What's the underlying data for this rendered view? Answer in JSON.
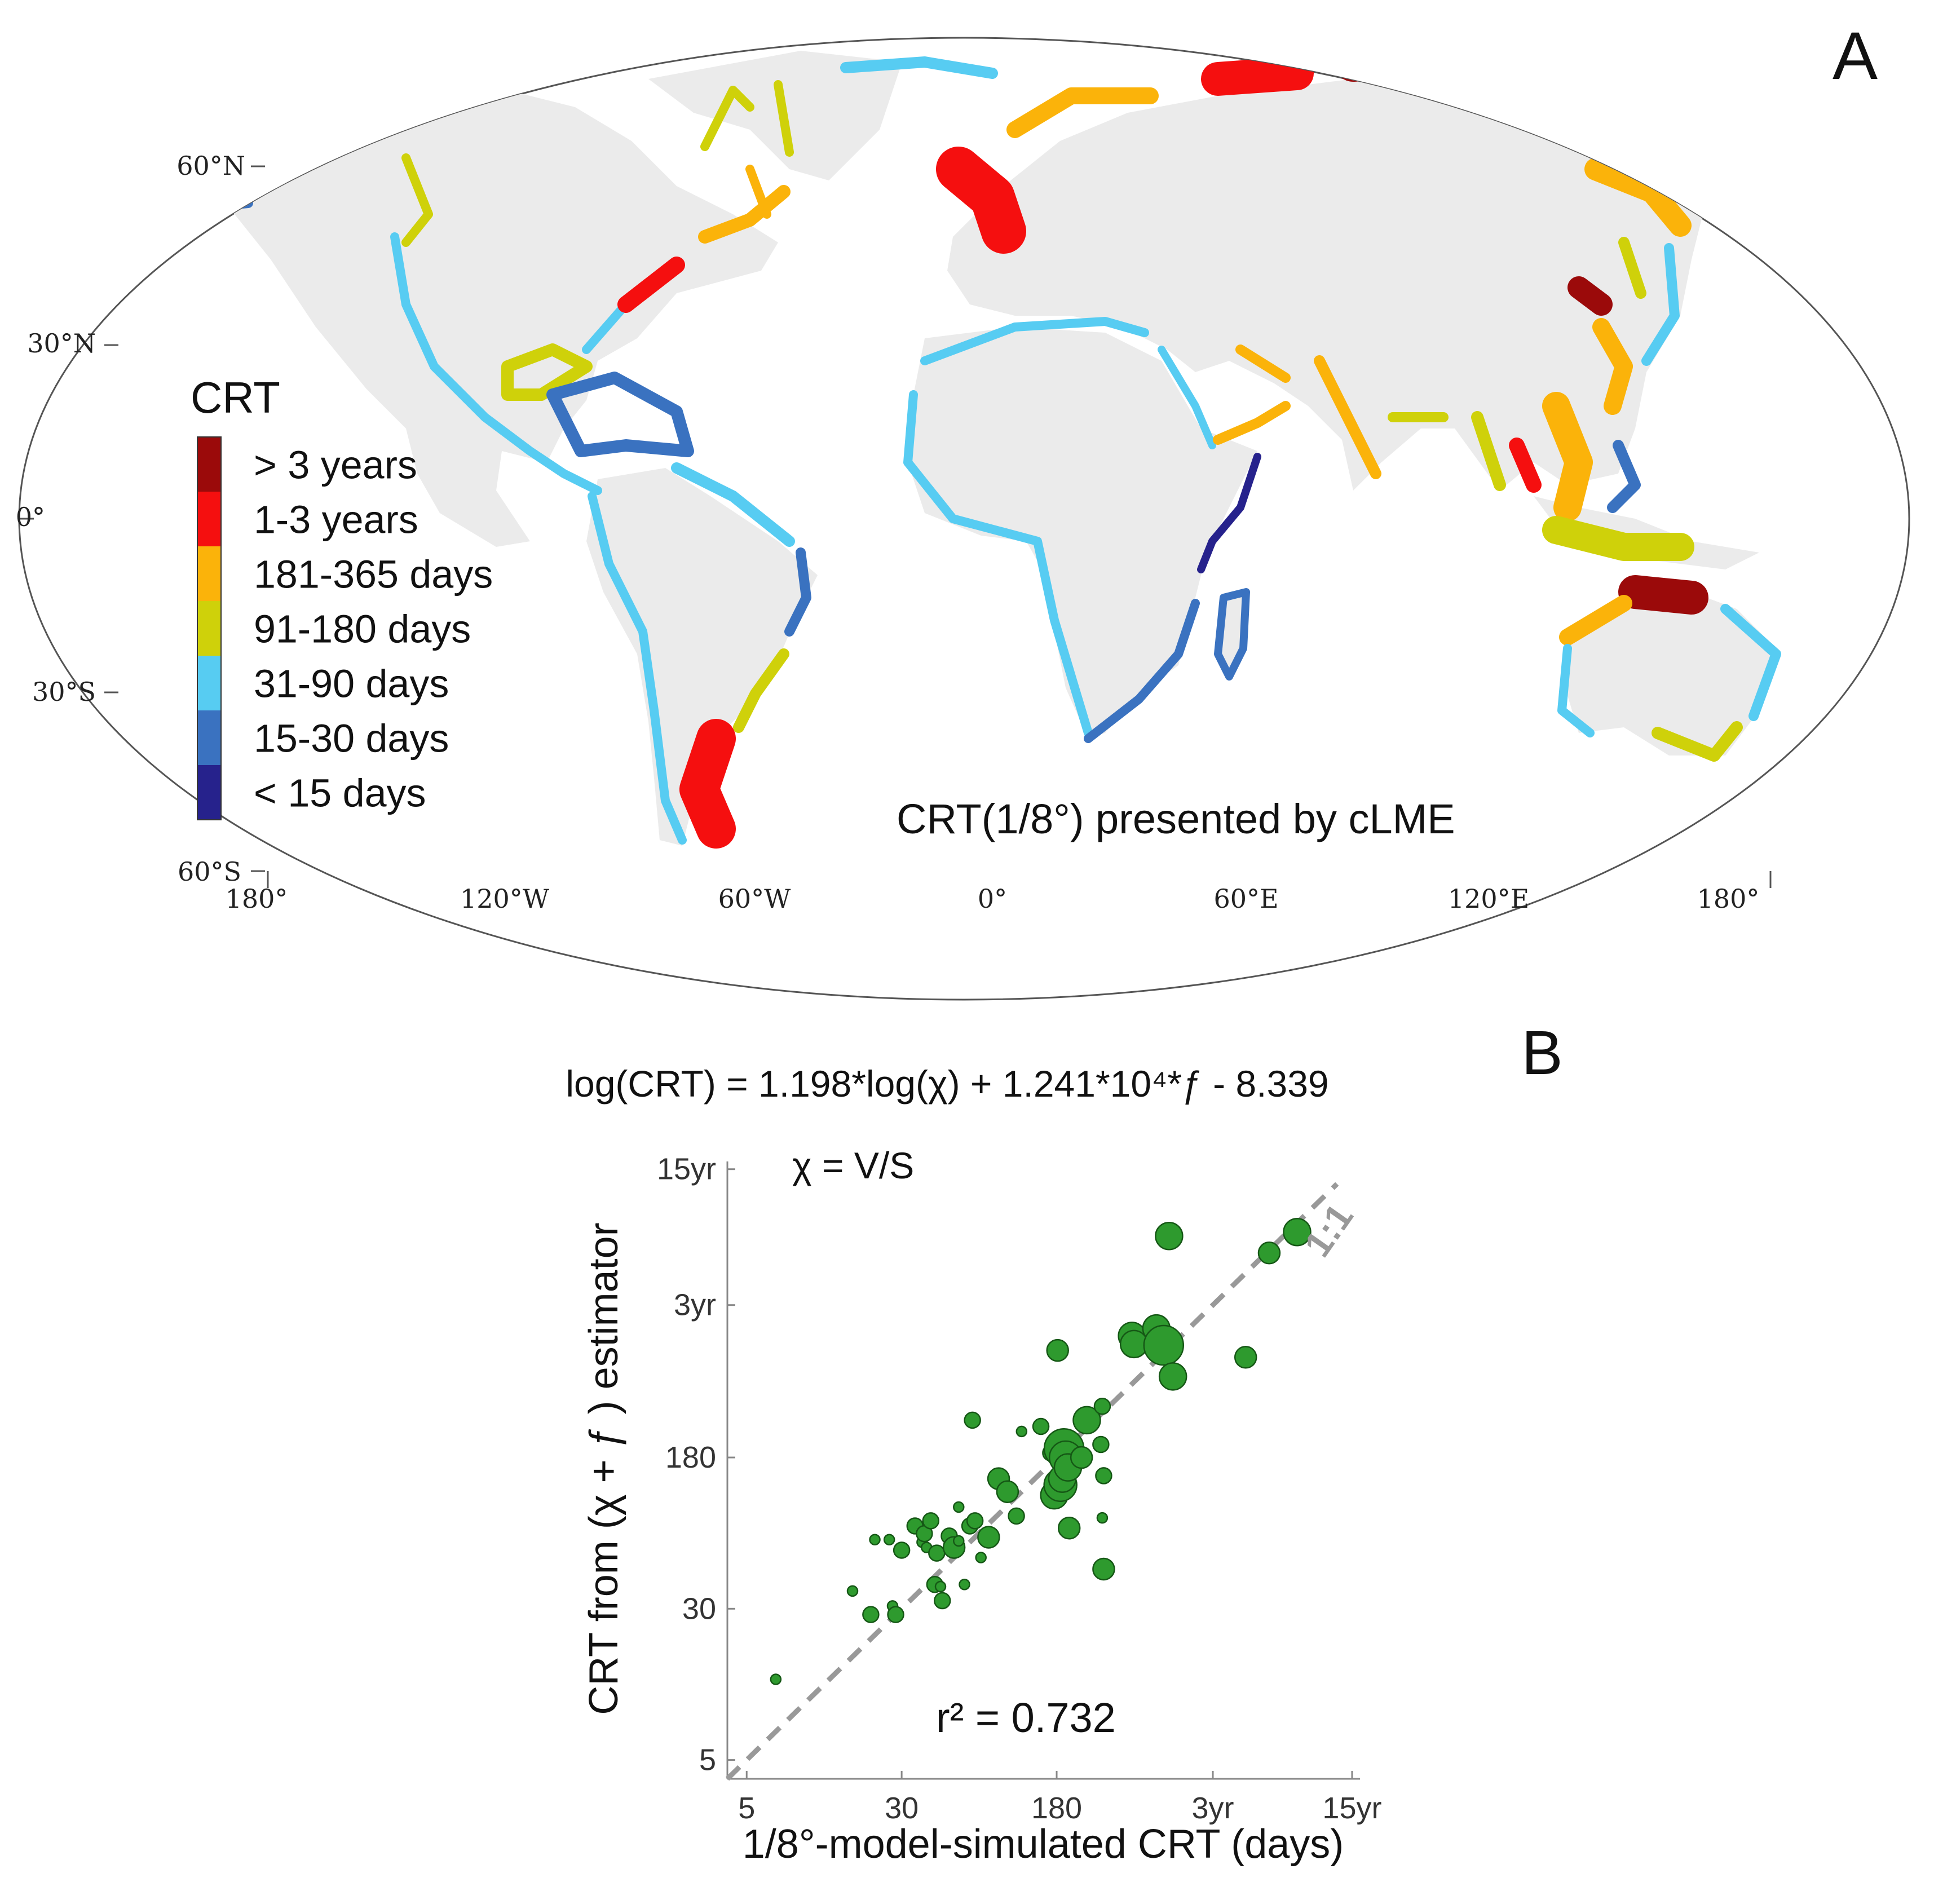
{
  "panel_a": {
    "label": "A",
    "caption": "CRT(1/8°) presented by cLME",
    "lat_ticks": [
      "60°N",
      "30°N",
      "0°",
      "30°S",
      "60°S"
    ],
    "lon_ticks": [
      "180°",
      "120°W",
      "60°W",
      "0°",
      "60°E",
      "120°E",
      "180°"
    ],
    "legend": {
      "title": "CRT",
      "items": [
        {
          "label": "> 3 years",
          "color": "#9b0a0a"
        },
        {
          "label": "1-3 years",
          "color": "#f50f0f"
        },
        {
          "label": "181-365 days",
          "color": "#fbb30a"
        },
        {
          "label": "91-180 days",
          "color": "#cfd10a"
        },
        {
          "label": "31-90 days",
          "color": "#57ccf2"
        },
        {
          "label": "15-30 days",
          "color": "#3a72c0"
        },
        {
          "label": "< 15 days",
          "color": "#26228c"
        }
      ]
    }
  },
  "panel_b": {
    "label": "B",
    "equation": "log(CRT) = 1.198*log(χ) + 1.241*10⁴*ƒ - 8.339",
    "chi_label": "χ = V/S",
    "r2_label": "r² = 0.732",
    "one_to_one_label": "1:1"
  },
  "chart_data": {
    "type": "scatter",
    "xlabel": "1/8°-model-simulated CRT (days)",
    "ylabel": "CRT from (χ + ƒ ) estimator",
    "scale": "log",
    "xlim_days": [
      4,
      6000
    ],
    "ylim_days": [
      4,
      6000
    ],
    "x_ticks": [
      {
        "label": "5",
        "value": 5
      },
      {
        "label": "30",
        "value": 30
      },
      {
        "label": "180",
        "value": 180
      },
      {
        "label": "3yr",
        "value": 1095
      },
      {
        "label": "15yr",
        "value": 5475
      }
    ],
    "y_ticks": [
      {
        "label": "5",
        "value": 5
      },
      {
        "label": "30",
        "value": 30
      },
      {
        "label": "180",
        "value": 180
      },
      {
        "label": "3yr",
        "value": 1095
      },
      {
        "label": "15yr",
        "value": 5475
      }
    ],
    "color": "#2e9a2e",
    "reference_line": "1:1",
    "points": [
      {
        "x": 7,
        "y": 13,
        "s": 1
      },
      {
        "x": 17,
        "y": 37,
        "s": 1
      },
      {
        "x": 21,
        "y": 28,
        "s": 2
      },
      {
        "x": 27,
        "y": 31,
        "s": 1
      },
      {
        "x": 28,
        "y": 28,
        "s": 2
      },
      {
        "x": 22,
        "y": 68,
        "s": 1
      },
      {
        "x": 26,
        "y": 68,
        "s": 1
      },
      {
        "x": 30,
        "y": 60,
        "s": 2
      },
      {
        "x": 35,
        "y": 80,
        "s": 2
      },
      {
        "x": 38,
        "y": 66,
        "s": 1
      },
      {
        "x": 39,
        "y": 73,
        "s": 2
      },
      {
        "x": 42,
        "y": 85,
        "s": 2
      },
      {
        "x": 40,
        "y": 62,
        "s": 1
      },
      {
        "x": 45,
        "y": 58,
        "s": 2
      },
      {
        "x": 44,
        "y": 40,
        "s": 2
      },
      {
        "x": 47,
        "y": 39,
        "s": 1
      },
      {
        "x": 48,
        "y": 33,
        "s": 2
      },
      {
        "x": 52,
        "y": 71,
        "s": 2
      },
      {
        "x": 55,
        "y": 62,
        "s": 3
      },
      {
        "x": 58,
        "y": 67,
        "s": 1
      },
      {
        "x": 58,
        "y": 100,
        "s": 1
      },
      {
        "x": 62,
        "y": 40,
        "s": 1
      },
      {
        "x": 66,
        "y": 80,
        "s": 2
      },
      {
        "x": 70,
        "y": 85,
        "s": 2
      },
      {
        "x": 75,
        "y": 55,
        "s": 1
      },
      {
        "x": 82,
        "y": 70,
        "s": 3
      },
      {
        "x": 68,
        "y": 280,
        "s": 2
      },
      {
        "x": 92,
        "y": 140,
        "s": 3
      },
      {
        "x": 102,
        "y": 120,
        "s": 3
      },
      {
        "x": 113,
        "y": 90,
        "s": 2
      },
      {
        "x": 120,
        "y": 245,
        "s": 1
      },
      {
        "x": 150,
        "y": 260,
        "s": 2
      },
      {
        "x": 168,
        "y": 190,
        "s": 2
      },
      {
        "x": 175,
        "y": 115,
        "s": 4
      },
      {
        "x": 182,
        "y": 640,
        "s": 3
      },
      {
        "x": 188,
        "y": 130,
        "s": 5
      },
      {
        "x": 192,
        "y": 140,
        "s": 4
      },
      {
        "x": 196,
        "y": 200,
        "s": 6
      },
      {
        "x": 200,
        "y": 180,
        "s": 5
      },
      {
        "x": 205,
        "y": 160,
        "s": 4
      },
      {
        "x": 208,
        "y": 78,
        "s": 3
      },
      {
        "x": 240,
        "y": 180,
        "s": 3
      },
      {
        "x": 255,
        "y": 280,
        "s": 4
      },
      {
        "x": 300,
        "y": 210,
        "s": 2
      },
      {
        "x": 305,
        "y": 330,
        "s": 2
      },
      {
        "x": 310,
        "y": 145,
        "s": 2
      },
      {
        "x": 305,
        "y": 88,
        "s": 1
      },
      {
        "x": 310,
        "y": 48,
        "s": 3
      },
      {
        "x": 430,
        "y": 760,
        "s": 4
      },
      {
        "x": 440,
        "y": 690,
        "s": 4
      },
      {
        "x": 570,
        "y": 830,
        "s": 4
      },
      {
        "x": 620,
        "y": 680,
        "s": 6
      },
      {
        "x": 690,
        "y": 470,
        "s": 4
      },
      {
        "x": 660,
        "y": 2480,
        "s": 4
      },
      {
        "x": 1600,
        "y": 590,
        "s": 3
      },
      {
        "x": 2100,
        "y": 2030,
        "s": 3
      },
      {
        "x": 2900,
        "y": 2600,
        "s": 4
      }
    ]
  }
}
